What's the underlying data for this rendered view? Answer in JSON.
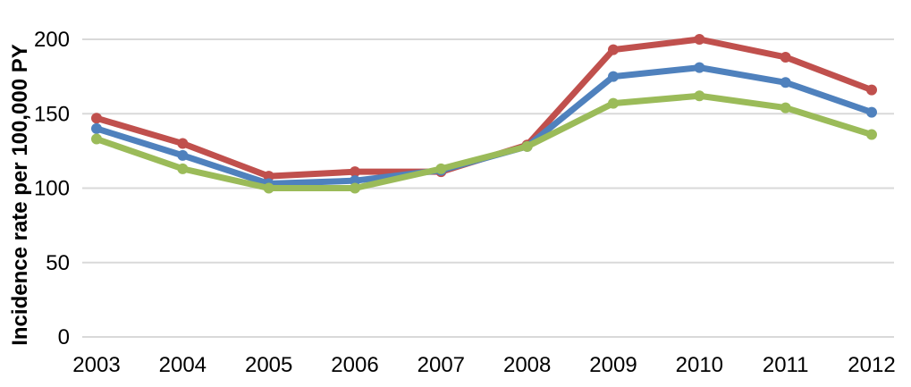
{
  "chart_data": {
    "type": "line",
    "ylabel": "Incidence rate per 100,000 PY",
    "xlabel": "",
    "categories": [
      "2003",
      "2004",
      "2005",
      "2006",
      "2007",
      "2008",
      "2009",
      "2010",
      "2011",
      "2012"
    ],
    "ylim": [
      0,
      220
    ],
    "yticks": [
      0,
      50,
      100,
      150,
      200
    ],
    "grid": true,
    "legend": "none",
    "series": [
      {
        "color": "#c0504d",
        "values": [
          147,
          130,
          108,
          111,
          111,
          129,
          193,
          200,
          188,
          166
        ]
      },
      {
        "color": "#4f81bd",
        "values": [
          140,
          122,
          103,
          105,
          112,
          128,
          175,
          181,
          171,
          151
        ]
      },
      {
        "color": "#9bbb59",
        "values": [
          133,
          113,
          100,
          100,
          113,
          128,
          157,
          162,
          154,
          136
        ]
      }
    ]
  }
}
